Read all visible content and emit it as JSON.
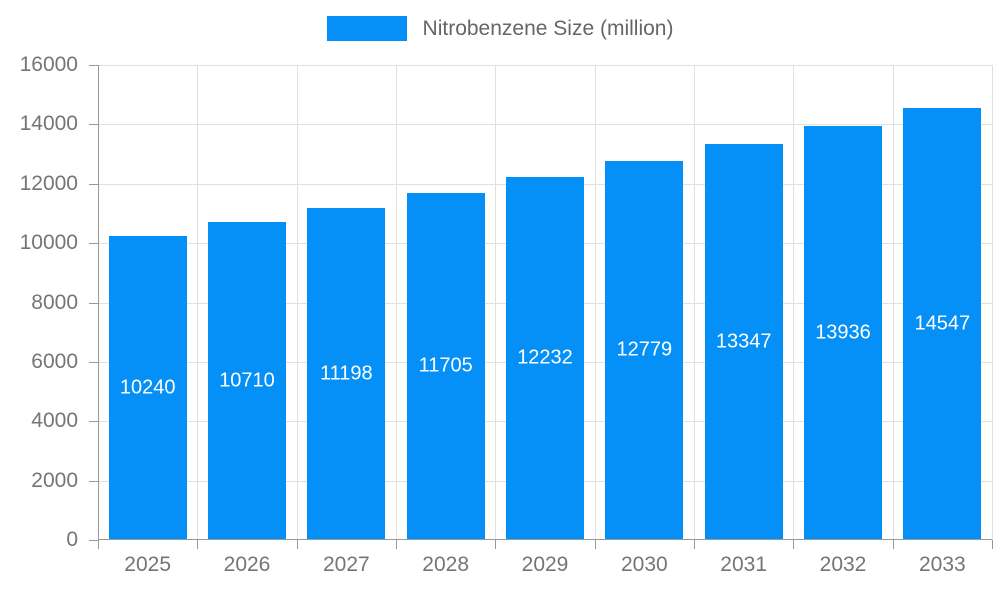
{
  "chart_data": {
    "type": "bar",
    "title": "Nitrobenzene Size (million)",
    "categories": [
      "2025",
      "2026",
      "2027",
      "2028",
      "2029",
      "2030",
      "2031",
      "2032",
      "2033"
    ],
    "values": [
      10240,
      10710,
      11198,
      11705,
      12232,
      12779,
      13347,
      13936,
      14547
    ],
    "series": [
      {
        "name": "Nitrobenzene Size (million)",
        "values": [
          10240,
          10710,
          11198,
          11705,
          12232,
          12779,
          13347,
          13936,
          14547
        ]
      }
    ],
    "xlabel": "",
    "ylabel": "",
    "ylim": [
      0,
      16000
    ],
    "ytick_step": 2000,
    "ytick_labels": [
      "0",
      "2000",
      "4000",
      "6000",
      "8000",
      "10000",
      "12000",
      "14000",
      "16000"
    ],
    "grid": true,
    "legend_position": "top-center",
    "value_labels": "centered-inside-bars"
  },
  "legend": {
    "label": "Nitrobenzene Size (million)"
  },
  "colors": {
    "bar": "#0590f8",
    "value_label": "#ffffff",
    "axis_label": "#757575",
    "legend_text": "#666666",
    "gridline": "#e0e0e0",
    "axis_line": "#999999",
    "background": "#ffffff"
  }
}
